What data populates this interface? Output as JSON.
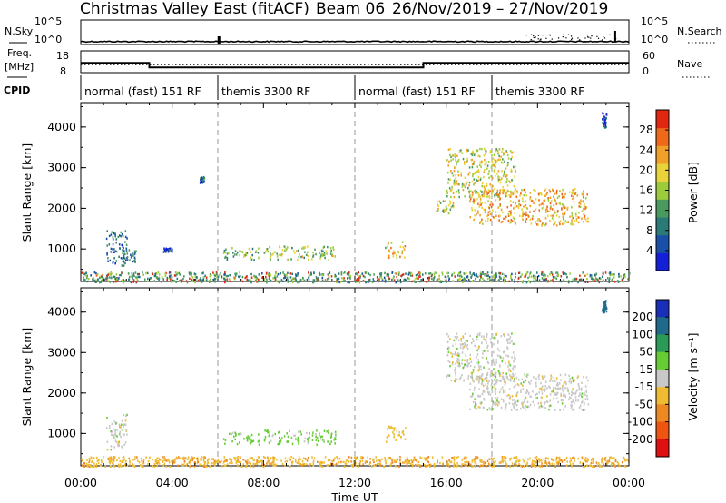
{
  "title": "Christmas Valley East (fitACF)",
  "beam_label": "Beam 06",
  "date_range": "26/Nov/2019 – 27/Nov/2019",
  "left_labels": {
    "nsky": "N.Sky",
    "freq_line1": "Freq.",
    "freq_line2": "[MHz]",
    "cpid": "CPID"
  },
  "right_labels": {
    "nsearch": "N.Search",
    "nave": "Nave"
  },
  "nsky_axis": {
    "top": "10^5",
    "bottom": "10^0"
  },
  "nsearch_axis": {
    "top": "10^5",
    "bottom": "10^0"
  },
  "freq_axis": {
    "top": "18",
    "bottom": "8"
  },
  "nave_axis": {
    "top": "60",
    "bottom": "0"
  },
  "cpid_segments": [
    {
      "label": "normal (fast) 151 RF",
      "start_hour": 0,
      "end_hour": 6
    },
    {
      "label": "themis 3300 RF",
      "start_hour": 6,
      "end_hour": 12
    },
    {
      "label": "normal (fast) 151 RF",
      "start_hour": 12,
      "end_hour": 18
    },
    {
      "label": "themis 3300 RF",
      "start_hour": 18,
      "end_hour": 24
    }
  ],
  "x_axis": {
    "label": "Time UT",
    "ticks": [
      "00:00",
      "04:00",
      "08:00",
      "12:00",
      "16:00",
      "20:00",
      "00:00"
    ],
    "tick_hours": [
      0,
      4,
      8,
      12,
      16,
      20,
      24
    ],
    "range_hours": [
      0,
      24
    ]
  },
  "y_axis": {
    "label": "Slant Range [km]",
    "ticks": [
      1000,
      2000,
      3000,
      4000
    ],
    "range_km": [
      200,
      4600
    ]
  },
  "power_colorbar": {
    "label": "Power [dB]",
    "ticks": [
      "4",
      "8",
      "12",
      "16",
      "20",
      "24",
      "28"
    ],
    "tick_values": [
      4,
      8,
      12,
      16,
      20,
      24,
      28
    ],
    "range": [
      0,
      32
    ],
    "colors": [
      "#1420d8",
      "#1a4fa8",
      "#2a7a78",
      "#4a9a60",
      "#9ccc3c",
      "#e8d43a",
      "#f0a028",
      "#ee6a1a",
      "#e02810"
    ]
  },
  "velocity_colorbar": {
    "label": "Velocity [m s⁻¹]",
    "ticks": [
      "200",
      "100",
      "50",
      "15",
      "-15",
      "-50",
      "-100",
      "-200"
    ],
    "colors": [
      "#1a2fb8",
      "#1f6a8a",
      "#2a9a56",
      "#66cc33",
      "#c8c8c8",
      "#eebb33",
      "#ee8822",
      "#ee5511",
      "#dd1111"
    ]
  },
  "chart_data": {
    "type": "heatmap",
    "frequency_mhz_series": [
      {
        "start_hour": 0,
        "end_hour": 3,
        "value": 12.5
      },
      {
        "start_hour": 3,
        "end_hour": 15,
        "value": 10.4
      },
      {
        "start_hour": 15,
        "end_hour": 24,
        "value": 12.5
      }
    ],
    "nave_level": 22,
    "nsky_level_log": 0.6,
    "power_features": [
      {
        "t0": 1.1,
        "t1": 2.0,
        "r0": 600,
        "r1": 1500,
        "power": 8
      },
      {
        "t0": 1.8,
        "t1": 2.4,
        "r0": 700,
        "r1": 1000,
        "power": 8
      },
      {
        "t0": 3.6,
        "t1": 4.0,
        "r0": 950,
        "r1": 1050,
        "power": 6
      },
      {
        "t0": 5.2,
        "t1": 5.4,
        "r0": 2650,
        "r1": 2800,
        "power": 6
      },
      {
        "t0": 6.2,
        "t1": 7.8,
        "r0": 750,
        "r1": 1050,
        "power": 14
      },
      {
        "t0": 8.0,
        "t1": 11.2,
        "r0": 750,
        "r1": 1100,
        "power": 16
      },
      {
        "t0": 13.3,
        "t1": 14.2,
        "r0": 800,
        "r1": 1200,
        "power": 20
      },
      {
        "t0": 16.0,
        "t1": 19.0,
        "r0": 2300,
        "r1": 3500,
        "power": 18
      },
      {
        "t0": 17.0,
        "t1": 22.2,
        "r0": 1600,
        "r1": 2500,
        "power": 22
      },
      {
        "t0": 15.5,
        "t1": 16.3,
        "r0": 1900,
        "r1": 2200,
        "power": 18
      },
      {
        "t0": 22.8,
        "t1": 23.0,
        "r0": 4000,
        "r1": 4400,
        "power": 4
      },
      {
        "t0": 0.0,
        "t1": 24.0,
        "r0": 200,
        "r1": 450,
        "power": 12
      }
    ],
    "velocity_features": [
      {
        "t0": 1.1,
        "t1": 2.0,
        "r0": 600,
        "r1": 1500,
        "velocity": 0
      },
      {
        "t0": 6.2,
        "t1": 7.8,
        "r0": 750,
        "r1": 1050,
        "velocity": 30
      },
      {
        "t0": 8.0,
        "t1": 11.2,
        "r0": 750,
        "r1": 1100,
        "velocity": 30
      },
      {
        "t0": 13.3,
        "t1": 14.2,
        "r0": 800,
        "r1": 1200,
        "velocity": -30
      },
      {
        "t0": 16.0,
        "t1": 19.0,
        "r0": 2300,
        "r1": 3500,
        "velocity": 0
      },
      {
        "t0": 17.0,
        "t1": 22.2,
        "r0": 1600,
        "r1": 2500,
        "velocity": 0
      },
      {
        "t0": 22.8,
        "t1": 23.0,
        "r0": 4000,
        "r1": 4400,
        "velocity": 150
      },
      {
        "t0": 0.0,
        "t1": 24.0,
        "r0": 200,
        "r1": 450,
        "velocity": -40
      }
    ]
  }
}
